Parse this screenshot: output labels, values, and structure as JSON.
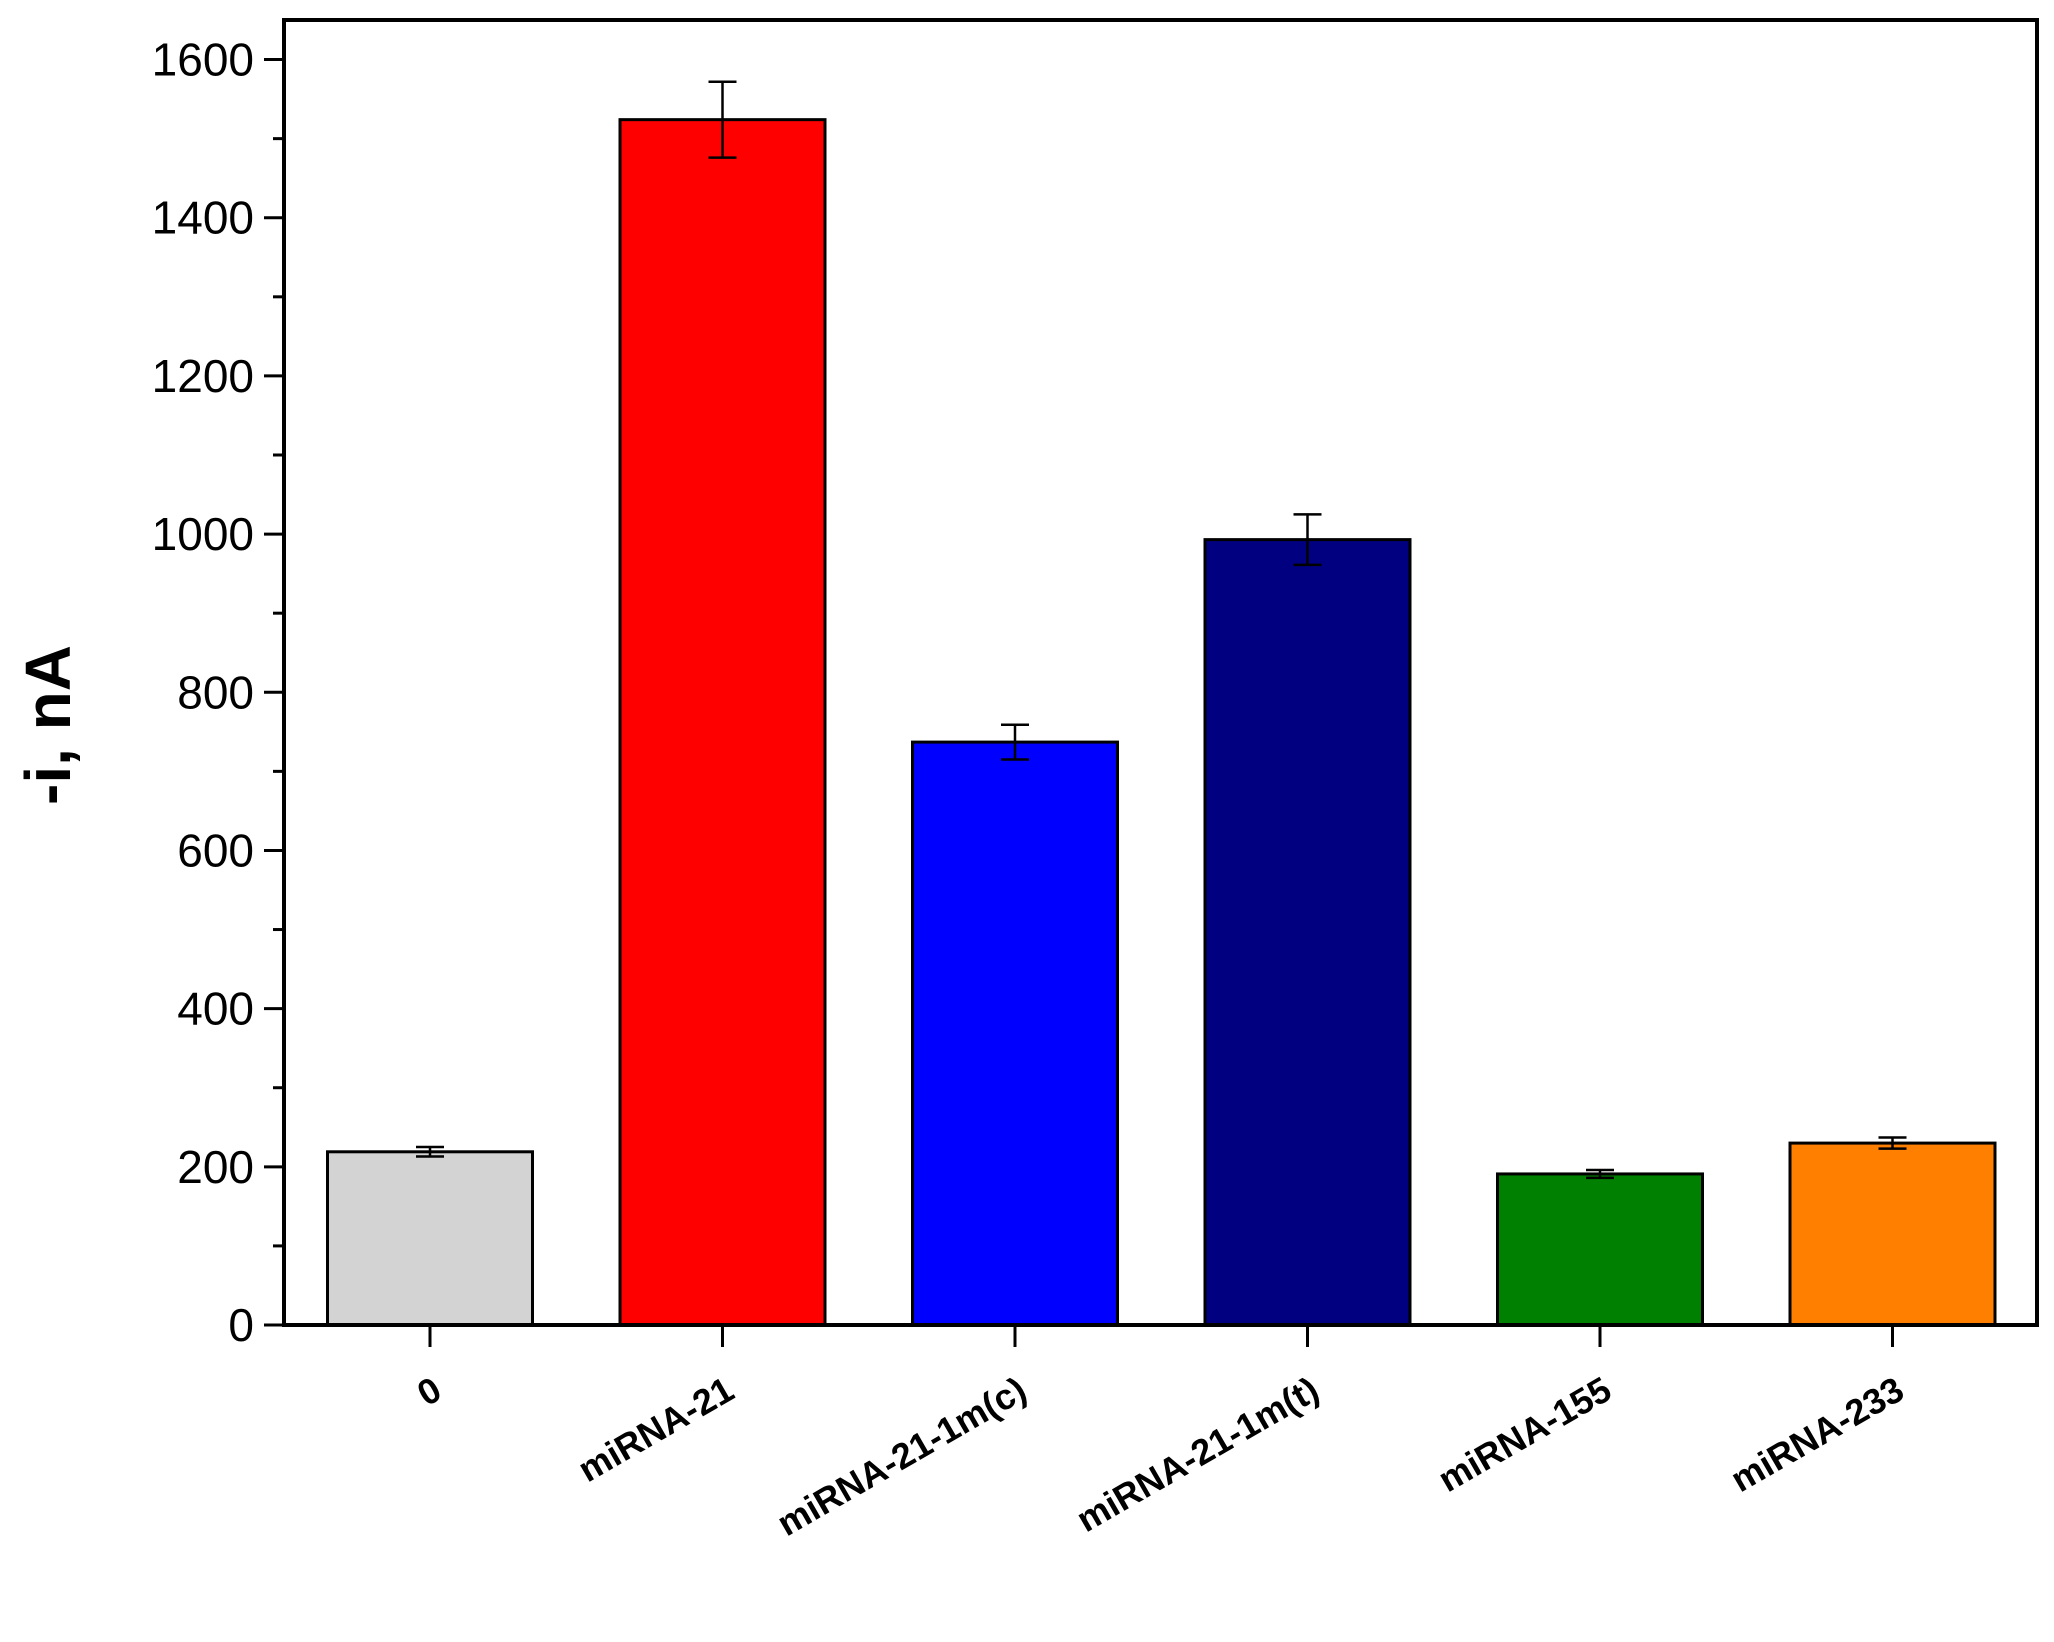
{
  "chart_data": {
    "type": "bar",
    "ylabel": "-i, nA",
    "xlabel": "",
    "ylim": [
      0,
      1650
    ],
    "yticks": [
      0,
      200,
      400,
      600,
      800,
      1000,
      1200,
      1400,
      1600
    ],
    "ytick_labels": [
      "0",
      "200",
      "400",
      "600",
      "800",
      "1000",
      "1200",
      "1400",
      "1600"
    ],
    "categories": [
      "0",
      "miRNA-21",
      "miRNA-21-1m(c)",
      "miRNA-21-1m(t)",
      "miRNA-155",
      "miRNA-233"
    ],
    "values": [
      219,
      1524,
      737,
      993,
      191,
      230
    ],
    "errors": [
      6,
      48,
      22,
      32,
      5,
      7
    ],
    "colors": [
      "#d3d3d3",
      "#ff0000",
      "#0000ff",
      "#000080",
      "#008000",
      "#ff8000"
    ],
    "grid": false,
    "legend": false
  }
}
